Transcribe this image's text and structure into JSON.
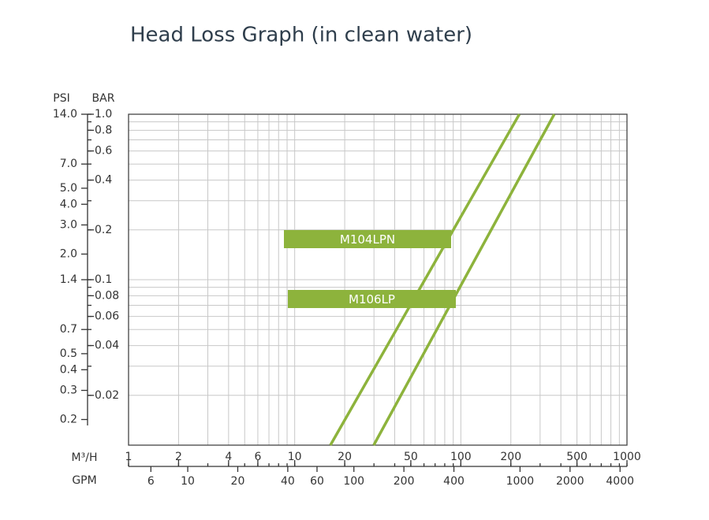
{
  "chart_data": {
    "type": "line",
    "title": "Head Loss Graph (in clean water)",
    "xscale": "log",
    "yscale": "log",
    "xlabel": "M³/H",
    "xlim": [
      1,
      1000
    ],
    "xticks": [
      1,
      2,
      4,
      6,
      10,
      20,
      50,
      100,
      200,
      500,
      1000
    ],
    "xgrid": [
      1,
      2,
      3,
      4,
      5,
      6,
      7,
      8,
      9,
      10,
      20,
      30,
      40,
      50,
      60,
      70,
      80,
      90,
      100,
      200,
      300,
      400,
      500,
      600,
      700,
      800,
      900,
      1000
    ],
    "x2label": "GPM",
    "x2lim": [
      4.403,
      4403
    ],
    "x2ticks": [
      6,
      10,
      20,
      40,
      60,
      100,
      200,
      400,
      1000,
      2000,
      4000
    ],
    "ylabel": "BAR",
    "ylim": [
      0.01,
      1
    ],
    "yticks": [
      {
        "value": 1,
        "label": "1.0"
      },
      0.8,
      0.6,
      0.4,
      0.2,
      0.1,
      0.08,
      0.06,
      0.04,
      0.02
    ],
    "ygrid": [
      0.01,
      0.02,
      0.03,
      0.04,
      0.05,
      0.06,
      0.07,
      0.08,
      0.09,
      0.1,
      0.2,
      0.3,
      0.4,
      0.5,
      0.6,
      0.7,
      0.8,
      0.9,
      1
    ],
    "y2label": "PSI",
    "y2lim": [
      0.14,
      14
    ],
    "y2ticks": [
      {
        "value": 14,
        "label": "14.0"
      },
      {
        "value": 7,
        "label": "7.0"
      },
      {
        "value": 5,
        "label": "5.0"
      },
      {
        "value": 4,
        "label": "4.0"
      },
      {
        "value": 3,
        "label": "3.0"
      },
      {
        "value": 2,
        "label": "2.0"
      },
      1.4,
      0.7,
      0.5,
      0.4,
      0.3,
      0.2
    ],
    "grid": true,
    "series": [
      {
        "name": "M104LPN",
        "color": "#8db33c",
        "x": [
          16.4,
          225
        ],
        "values": [
          0.01,
          1
        ]
      },
      {
        "name": "M106LP",
        "color": "#8db33c",
        "x": [
          29.9,
          365
        ],
        "values": [
          0.01,
          1
        ]
      }
    ]
  }
}
